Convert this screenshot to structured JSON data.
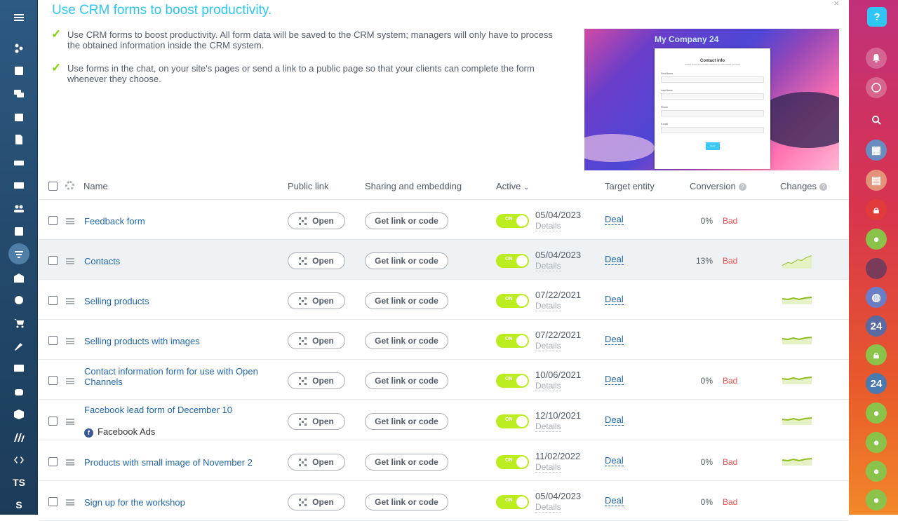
{
  "leftbar": {
    "items": [
      "menu-icon",
      "stream-icon",
      "feed-icon",
      "chat-icon",
      "calendar-icon",
      "document-icon",
      "drive-icon",
      "mail-icon",
      "groups-icon",
      "tasks-icon",
      "crm-funnel-icon",
      "store-icon",
      "target-icon",
      "cart-icon",
      "sign-icon",
      "contact-card-icon",
      "robot-icon",
      "box-icon",
      "mm-logo-icon",
      "code-icon"
    ],
    "text_items": [
      "TS",
      "S"
    ]
  },
  "header": {
    "title": "Use CRM forms to boost productivity.",
    "close": "×"
  },
  "features": [
    "Use CRM forms to boost productivity. All form data will be saved to the CRM system; managers will only have to process the obtained information inside the CRM system.",
    "Use forms in the chat, on your site's pages or send a link to a public page so that your clients can complete the form whenever they choose."
  ],
  "promo": {
    "brand": "My Company",
    "brand_num": "24",
    "form_title": "Contact info",
    "form_sub": "Please leave your contact info and we will contact you back",
    "fields": [
      "First Name",
      "Last Name",
      "Phone",
      "E-mail"
    ],
    "button": "Send"
  },
  "table": {
    "columns": {
      "name": "Name",
      "public_link": "Public link",
      "sharing": "Sharing and embedding",
      "active": "Active",
      "target": "Target entity",
      "conversion": "Conversion",
      "changes": "Changes"
    },
    "open_label": "Open",
    "get_link_label": "Get link or code",
    "on_label": "ON",
    "details_label": "Details",
    "rows": [
      {
        "name": "Feedback form",
        "date": "05/04/2023",
        "entity": "Deal",
        "conversion": "0%",
        "rating": "Bad",
        "spark": ""
      },
      {
        "name": "Contacts",
        "date": "05/04/2023",
        "entity": "Deal",
        "conversion": "13%",
        "rating": "Bad",
        "spark": "up"
      },
      {
        "name": "Selling products",
        "date": "07/22/2021",
        "entity": "Deal",
        "conversion": "",
        "rating": "",
        "spark": "flat"
      },
      {
        "name": "Selling products with images",
        "date": "07/22/2021",
        "entity": "Deal",
        "conversion": "",
        "rating": "",
        "spark": "flat"
      },
      {
        "name": "Contact information form for use with Open Channels",
        "date": "10/06/2021",
        "entity": "Deal",
        "conversion": "0%",
        "rating": "Bad",
        "spark": "flat"
      },
      {
        "name": "Facebook lead form of December 10",
        "sub": "Facebook Ads",
        "date": "12/10/2021",
        "entity": "Deal",
        "conversion": "",
        "rating": "",
        "spark": "flat"
      },
      {
        "name": "Products with small image of November 2",
        "date": "11/02/2022",
        "entity": "Deal",
        "conversion": "0%",
        "rating": "Bad",
        "spark": "flat"
      },
      {
        "name": "Sign up for the workshop",
        "date": "05/04/2023",
        "entity": "Deal",
        "conversion": "0%",
        "rating": "Bad",
        "spark": ""
      }
    ]
  },
  "rightbar": {
    "items": [
      "help-icon",
      "bell-icon",
      "chat-bubble-icon",
      "search-icon",
      "calendar-avatar",
      "card-avatar",
      "lock-avatar",
      "user-avatar",
      "photo-avatar",
      "group-chat-avatar",
      "b24-avatar",
      "lock-green-avatar",
      "b24-blue-avatar",
      "team-avatar",
      "team-avatar",
      "team-avatar",
      "team-avatar"
    ],
    "b24_label": "24"
  },
  "colors": {
    "accent": "#2fc6f6",
    "link": "#2067b0",
    "toggle": "#bbed21",
    "bad": "#f0504f",
    "check": "#7bd500"
  }
}
